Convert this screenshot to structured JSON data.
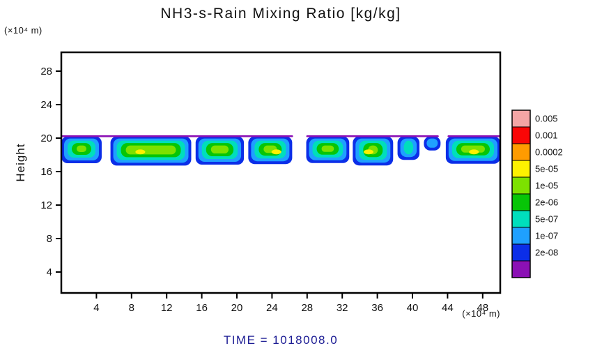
{
  "colors": {
    "frame": "#000000",
    "time_text": "#1c1c94"
  },
  "chart_data": {
    "type": "heatmap",
    "title": "NH3-s-Rain Mixing Ratio [kg/kg]",
    "xlabel": "(×10⁴ m)",
    "ylabel": "Height",
    "ylabel_unit": "(×10⁴ m)",
    "time_label": "TIME = 1018008.0",
    "xlim": [
      0,
      50
    ],
    "ylim": [
      1.5,
      30.25
    ],
    "x_ticks": [
      4,
      8,
      12,
      16,
      20,
      24,
      28,
      32,
      36,
      40,
      44,
      48
    ],
    "y_ticks": [
      4,
      8,
      12,
      16,
      20,
      24,
      28
    ],
    "grid": false,
    "legend_position": "right",
    "colorbar": {
      "labels": [
        "0.005",
        "0.001",
        "0.0002",
        "5e-05",
        "1e-05",
        "2e-06",
        "5e-07",
        "1e-07",
        "2e-08"
      ],
      "colors": [
        "#f4a5a5",
        "#f90606",
        "#ff9b00",
        "#fdf100",
        "#7de100",
        "#07c507",
        "#00debc",
        "#1fa0ff",
        "#0b2ee8",
        "#8b10b5"
      ]
    },
    "band": {
      "description": "Filled-contour rain mixing ratio layer between heights ~16.8 and ~20.2 (x10^4 m), spanning full x range with gaps near x=27, x=41.5 and x=43.5",
      "top": 20.2,
      "segments": [
        {
          "x0": 0.0,
          "x1": 4.6,
          "bottom": 17.0
        },
        {
          "x0": 5.6,
          "x1": 14.8,
          "bottom": 16.8
        },
        {
          "x0": 15.3,
          "x1": 20.8,
          "bottom": 17.0
        },
        {
          "x0": 21.3,
          "x1": 26.3,
          "bottom": 16.9
        },
        {
          "x0": 27.9,
          "x1": 32.8,
          "bottom": 17.1
        },
        {
          "x0": 33.2,
          "x1": 37.8,
          "bottom": 16.9
        },
        {
          "x0": 38.3,
          "x1": 40.8,
          "bottom": 17.4
        },
        {
          "x0": 41.3,
          "x1": 43.2,
          "bottom": 18.6
        },
        {
          "x0": 43.8,
          "x1": 50.0,
          "bottom": 17.1
        }
      ],
      "top_line_spans": [
        [
          0.0,
          26.4
        ],
        [
          27.9,
          43.0
        ],
        [
          44.0,
          50.0
        ]
      ],
      "yellow_spots": [
        9.0,
        24.5,
        35.0,
        47.0
      ]
    }
  }
}
